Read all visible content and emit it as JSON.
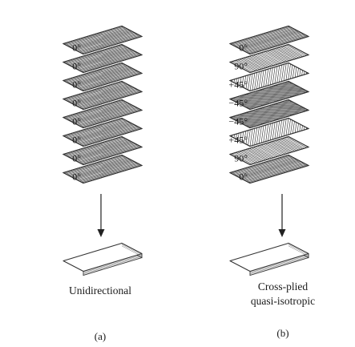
{
  "panels": [
    {
      "id": "a",
      "tag": "(a)",
      "caption_lines": [
        "Unidirectional"
      ],
      "plies": [
        {
          "label": "0°",
          "angle": 0
        },
        {
          "label": "0°",
          "angle": 0
        },
        {
          "label": "0°",
          "angle": 0
        },
        {
          "label": "0°",
          "angle": 0
        },
        {
          "label": "0°",
          "angle": 0
        },
        {
          "label": "0°",
          "angle": 0
        },
        {
          "label": "0°",
          "angle": 0
        },
        {
          "label": "0°",
          "angle": 0
        }
      ]
    },
    {
      "id": "b",
      "tag": "(b)",
      "caption_lines": [
        "Cross-plied",
        "quasi-isotropic"
      ],
      "plies": [
        {
          "label": "0°",
          "angle": 0
        },
        {
          "label": "90°",
          "angle": 90
        },
        {
          "label": "+45°",
          "angle": 45
        },
        {
          "label": "−45°",
          "angle": -45
        },
        {
          "label": "−45°",
          "angle": -45
        },
        {
          "label": "+45°",
          "angle": 45
        },
        {
          "label": "90°",
          "angle": 90
        },
        {
          "label": "0°",
          "angle": 0
        }
      ]
    }
  ],
  "colors": {
    "ink": "#333333",
    "background": "#ffffff"
  }
}
